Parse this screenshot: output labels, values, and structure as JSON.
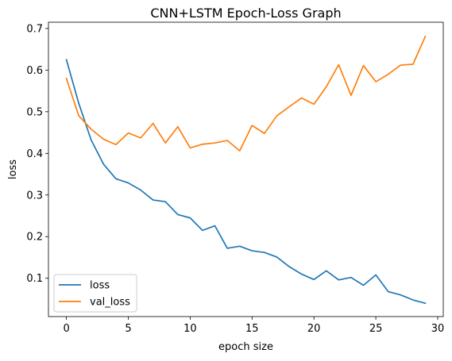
{
  "chart_data": {
    "type": "line",
    "title": "CNN+LSTM Epoch-Loss Graph",
    "xlabel": "epoch size",
    "ylabel": "loss",
    "xlim": [
      -1.45,
      30.45
    ],
    "ylim": [
      0.008,
      0.715
    ],
    "xticks": [
      0,
      5,
      10,
      15,
      20,
      25,
      30
    ],
    "xtick_labels": [
      "0",
      "5",
      "10",
      "15",
      "20",
      "25",
      "30"
    ],
    "yticks": [
      0.1,
      0.2,
      0.3,
      0.4,
      0.5,
      0.6,
      0.7
    ],
    "ytick_labels": [
      "0.1",
      "0.2",
      "0.3",
      "0.4",
      "0.5",
      "0.6",
      "0.7"
    ],
    "grid": false,
    "legend_position": "lower-left",
    "x": [
      0,
      1,
      2,
      3,
      4,
      5,
      6,
      7,
      8,
      9,
      10,
      11,
      12,
      13,
      14,
      15,
      16,
      17,
      18,
      19,
      20,
      21,
      22,
      23,
      24,
      25,
      26,
      27,
      28,
      29
    ],
    "series": [
      {
        "name": "loss",
        "color": "#1f77b4",
        "values": [
          0.625,
          0.52,
          0.432,
          0.374,
          0.339,
          0.329,
          0.312,
          0.288,
          0.284,
          0.253,
          0.245,
          0.215,
          0.226,
          0.172,
          0.177,
          0.166,
          0.162,
          0.151,
          0.128,
          0.11,
          0.097,
          0.118,
          0.096,
          0.102,
          0.083,
          0.108,
          0.068,
          0.06,
          0.048,
          0.04
        ]
      },
      {
        "name": "val_loss",
        "color": "#ff7f0e",
        "values": [
          0.58,
          0.49,
          0.458,
          0.434,
          0.421,
          0.449,
          0.437,
          0.472,
          0.425,
          0.464,
          0.413,
          0.422,
          0.425,
          0.431,
          0.406,
          0.467,
          0.448,
          0.49,
          0.512,
          0.533,
          0.518,
          0.56,
          0.613,
          0.539,
          0.611,
          0.572,
          0.59,
          0.612,
          0.614,
          0.681
        ]
      }
    ]
  }
}
